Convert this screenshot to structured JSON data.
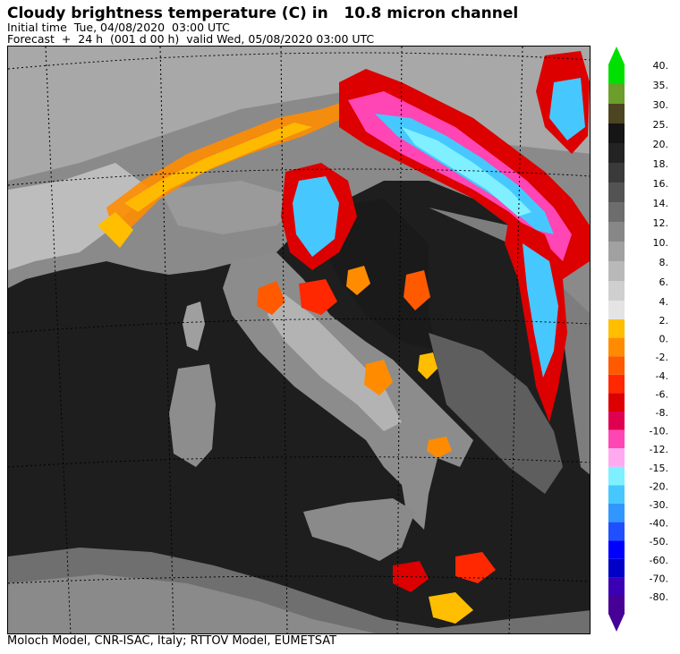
{
  "header": {
    "title": "Cloudy brightness temperature (C) in   10.8 micron channel",
    "initial_time": "Initial time  Tue, 04/08/2020  03:00 UTC",
    "forecast": "Forecast  +  24 h  (001 d 00 h)  valid Wed, 05/08/2020 03:00 UTC"
  },
  "footer": {
    "credits": "Moloch Model, CNR-ISAC, Italy; RTTOV Model, EUMETSAT"
  },
  "legend": {
    "units": "C",
    "top_labels": [
      "40.",
      "35.",
      "30.",
      "25.",
      "20.",
      "18.",
      "16.",
      "14.",
      "12.",
      "10.",
      "8.",
      "6.",
      "4."
    ],
    "top_colors": [
      "#00e000",
      "#6b9e2a",
      "#4d4522",
      "#151515",
      "#232323",
      "#3a3a3a",
      "#535353",
      "#6d6d6d",
      "#878787",
      "#a1a1a1",
      "#b9b9b9",
      "#cfcfcf",
      "#e4e4e4"
    ],
    "bottom_labels": [
      "2.",
      "0.",
      "-2.",
      "-4.",
      "-6.",
      "-8.",
      "-10.",
      "-12.",
      "-15.",
      "-20.",
      "-30.",
      "-40.",
      "-50.",
      "-60.",
      "-70.",
      "-80."
    ],
    "bottom_colors": [
      "#ffbe00",
      "#ff8c00",
      "#ff5a00",
      "#ff2800",
      "#dc0000",
      "#e00050",
      "#ff46b4",
      "#ffaaf0",
      "#7ff0ff",
      "#46c8ff",
      "#3296ff",
      "#1e50ff",
      "#0000ff",
      "#0000c8",
      "#3c00b4",
      "#460096"
    ]
  }
}
